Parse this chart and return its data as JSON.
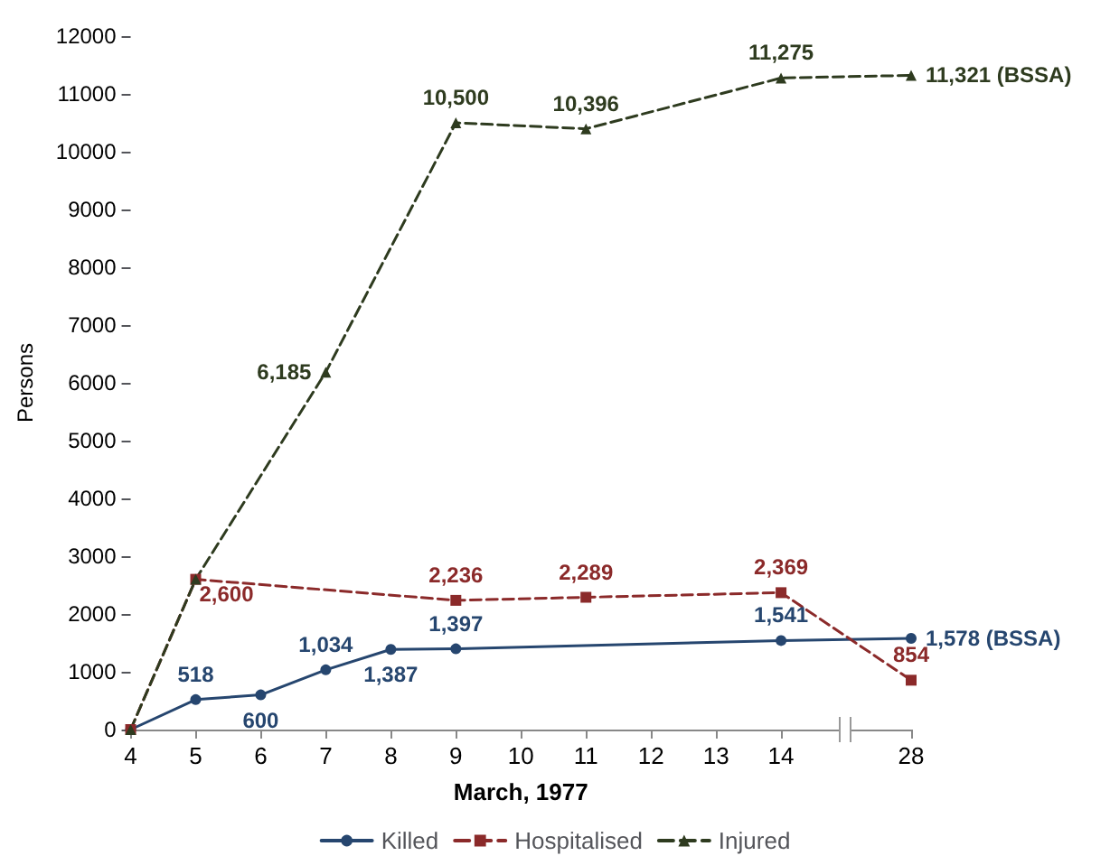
{
  "chart_data": {
    "type": "line",
    "xlabel": "March, 1977",
    "ylabel": "Persons",
    "categories": [
      "4",
      "5",
      "6",
      "7",
      "8",
      "9",
      "10",
      "11",
      "12",
      "13",
      "14",
      null,
      "28"
    ],
    "ylim": [
      0,
      12000
    ],
    "yticks": [
      0,
      1000,
      2000,
      3000,
      4000,
      5000,
      6000,
      7000,
      8000,
      9000,
      10000,
      11000,
      12000
    ],
    "grid": false,
    "legend": "bottom",
    "series": [
      {
        "name": "Killed",
        "color": "#26466f",
        "marker": "circle",
        "line_style": "solid",
        "values": [
          0,
          518,
          600,
          1034,
          1387,
          1397,
          null,
          null,
          null,
          null,
          1541,
          null,
          1578
        ],
        "value_labels": [
          null,
          "518",
          "600",
          "1,034",
          "1,387",
          "1,397",
          null,
          null,
          null,
          null,
          "1,541",
          null,
          "1,578 (BSSA)"
        ]
      },
      {
        "name": "Hospitalised",
        "color": "#8b2a2a",
        "marker": "square",
        "line_style": "dashed",
        "values": [
          0,
          2600,
          null,
          null,
          null,
          2236,
          null,
          2289,
          null,
          null,
          2369,
          null,
          854
        ],
        "value_labels": [
          null,
          "2,600",
          null,
          null,
          null,
          "2,236",
          null,
          "2,289",
          null,
          null,
          "2,369",
          null,
          "854"
        ]
      },
      {
        "name": "Injured",
        "color": "#2e3b1f",
        "marker": "triangle",
        "line_style": "dashed",
        "values": [
          0,
          2600,
          null,
          6185,
          null,
          10500,
          null,
          10396,
          null,
          null,
          11275,
          null,
          11321
        ],
        "value_labels": [
          null,
          null,
          null,
          "6,185",
          null,
          "10,500",
          null,
          "10,396",
          null,
          null,
          "11,275",
          null,
          "11,321 (BSSA)"
        ]
      }
    ]
  }
}
